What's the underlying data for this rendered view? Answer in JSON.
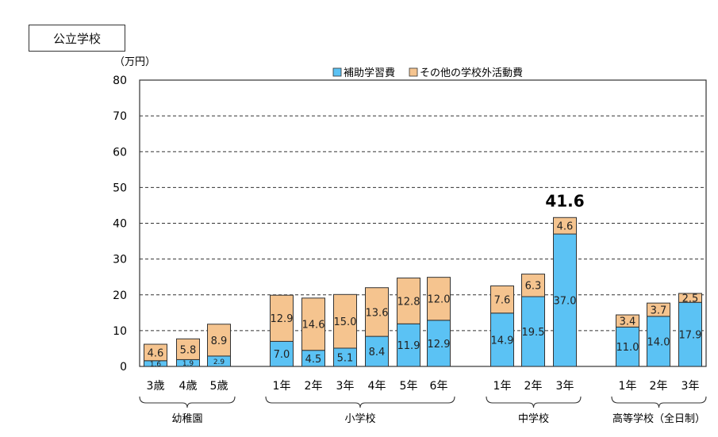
{
  "title": "公立学校",
  "chart_data": {
    "type": "bar",
    "stacked": true,
    "unit_label": "（万円）",
    "ylim": [
      0,
      80
    ],
    "yticks": [
      0,
      10,
      20,
      30,
      40,
      50,
      60,
      70,
      80
    ],
    "grid": "dashed horizontal",
    "legend_position": "top",
    "categories": [
      "3歳",
      "4歳",
      "5歳",
      "1年",
      "2年",
      "3年",
      "4年",
      "5年",
      "6年",
      "1年",
      "2年",
      "3年",
      "1年",
      "2年",
      "3年"
    ],
    "groups": [
      {
        "name": "幼稚園",
        "start": 0,
        "end": 2
      },
      {
        "name": "小学校",
        "start": 3,
        "end": 8
      },
      {
        "name": "中学校",
        "start": 9,
        "end": 11
      },
      {
        "name": "高等学校（全日制）",
        "start": 12,
        "end": 14
      }
    ],
    "series": [
      {
        "name": "補助学習費",
        "color": "#5BC2F4",
        "values": [
          1.6,
          1.9,
          2.9,
          7.0,
          4.5,
          5.1,
          8.4,
          11.9,
          12.9,
          14.9,
          19.5,
          37.0,
          11.0,
          14.0,
          17.9
        ],
        "labels": [
          "1.6",
          "1.9",
          "2.9",
          "7.0",
          "4.5",
          "5.1",
          "8.4",
          "11.9",
          "12.9",
          "14.9",
          "19.5",
          "37.0",
          "11.0",
          "14.0",
          "17.9"
        ]
      },
      {
        "name": "その他の学校外活動費",
        "color": "#F5C48F",
        "values": [
          4.6,
          5.8,
          8.9,
          12.9,
          14.6,
          15.0,
          13.6,
          12.8,
          12.0,
          7.6,
          6.3,
          4.6,
          3.4,
          3.7,
          2.5
        ],
        "labels": [
          "4.6",
          "5.8",
          "8.9",
          "12.9",
          "14.6",
          "15.0",
          "13.6",
          "12.8",
          "12.0",
          "7.6",
          "6.3",
          "4.6",
          "3.4",
          "3.7",
          "2.5"
        ]
      }
    ],
    "annotations": [
      {
        "category_index": 11,
        "text": "41.6"
      }
    ]
  }
}
